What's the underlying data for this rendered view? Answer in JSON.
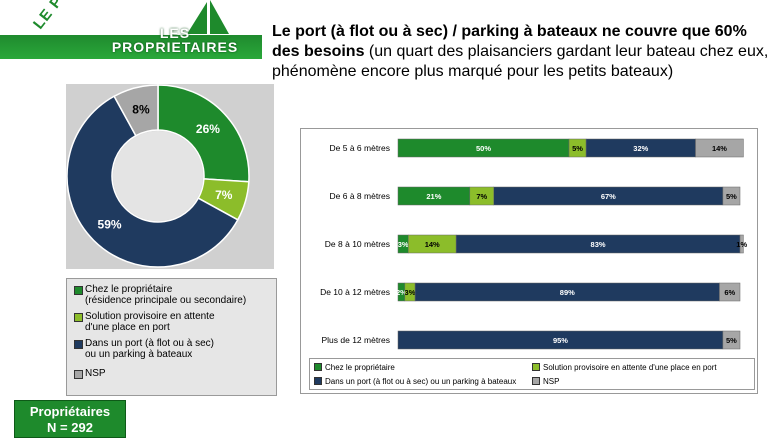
{
  "logo": {
    "arc_text": "LE PORT D'ATTACHE",
    "badge_text_line1": "LES",
    "badge_text_line2": "PROPRIETAIRES"
  },
  "headline": {
    "bold": "Le port (à flot ou à sec) / parking à bateaux ne couvre que 60% des besoins",
    "normal": " (un quart des plaisanciers gardant leur bateau chez eux, phénomène encore plus marqué pour les petits bateaux)"
  },
  "colors": {
    "green": "#1e8a2c",
    "light_green": "#8cbd2a",
    "navy": "#1f3a5f",
    "gray": "#a6a6a6"
  },
  "badge": {
    "line1": "Propriétaires",
    "line2": "N = 292"
  },
  "chart_data": [
    {
      "type": "pie",
      "donut": true,
      "labels": [
        "Chez le propriétaire (résidence principale ou secondaire)",
        "Solution provisoire en attente d'une place en port",
        "Dans un port (à flot ou à sec) ou un parking à bateaux",
        "NSP"
      ],
      "legend_lines": [
        "Chez le propriétaire\n(résidence principale ou secondaire)",
        "Solution provisoire en attente\nd'une place en port",
        "Dans un port (à flot ou à sec)\nou un parking à bateaux",
        "NSP"
      ],
      "values": [
        26,
        7,
        59,
        8
      ],
      "value_labels": [
        "26%",
        "7%",
        "59%",
        "8%"
      ],
      "colors": [
        "#1e8a2c",
        "#8cbd2a",
        "#1f3a5f",
        "#a6a6a6"
      ],
      "legend": "bottom"
    },
    {
      "type": "bar",
      "orientation": "horizontal",
      "stacked": "100%",
      "categories": [
        "De 5 à 6 mètres",
        "De 6 à 8 mètres",
        "De 8 à 10 mètres",
        "De 10 à 12 mètres",
        "Plus de 12 mètres"
      ],
      "series": [
        {
          "name": "Chez le propriétaire",
          "color": "#1e8a2c",
          "values": [
            50,
            21,
            3,
            2,
            0
          ],
          "labels": [
            "50%",
            "21%",
            "3%",
            "2%",
            ""
          ]
        },
        {
          "name": "Solution provisoire en attente d'une place en port",
          "color": "#8cbd2a",
          "values": [
            5,
            7,
            14,
            3,
            0
          ],
          "labels": [
            "5%",
            "7%",
            "14%",
            "3%",
            ""
          ]
        },
        {
          "name": "Dans un port (à flot ou à sec) ou un parking à bateaux",
          "color": "#1f3a5f",
          "values": [
            32,
            67,
            83,
            89,
            95
          ],
          "labels": [
            "32%",
            "67%",
            "83%",
            "89%",
            "95%"
          ]
        },
        {
          "name": "NSP",
          "color": "#a6a6a6",
          "values": [
            14,
            5,
            1,
            6,
            5
          ],
          "labels": [
            "14%",
            "5%",
            "1%",
            "6%",
            "5%"
          ]
        }
      ],
      "legend": "bottom"
    }
  ]
}
